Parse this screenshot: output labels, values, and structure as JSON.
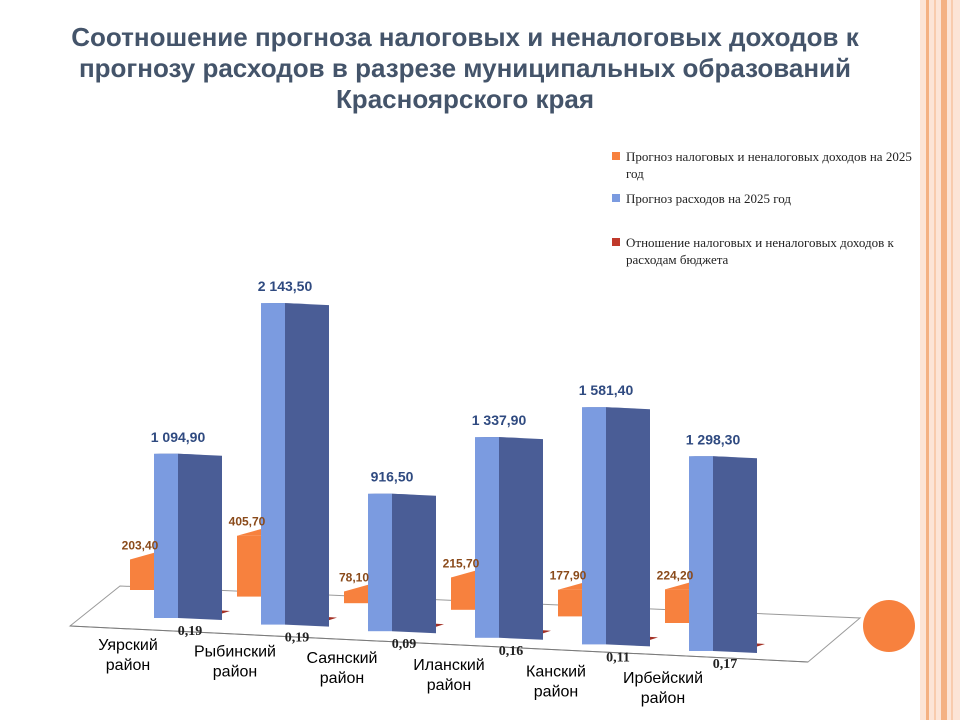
{
  "title": "Соотношение прогноза налоговых и неналоговых доходов к прогнозу расходов в разрезе муниципальных образований Красноярского края",
  "chart_data": {
    "type": "bar",
    "title": "Соотношение прогноза налоговых и неналоговых доходов к прогнозу расходов в разрезе муниципальных образований Красноярского края",
    "categories": [
      {
        "line1": "Уярский",
        "line2": "район"
      },
      {
        "line1": "Рыбинский",
        "line2": "район"
      },
      {
        "line1": "Саянский",
        "line2": "район"
      },
      {
        "line1": "Иланский",
        "line2": "район"
      },
      {
        "line1": "Канский",
        "line2": "район"
      },
      {
        "line1": "Ирбейский",
        "line2": "район"
      }
    ],
    "series": [
      {
        "name": "Прогноз налоговых и неналоговых доходов на 2025 год",
        "color": "#f7813e",
        "values": [
          203.4,
          405.7,
          78.1,
          215.7,
          177.9,
          224.2
        ],
        "labels": [
          "203,40",
          "405,70",
          "78,10",
          "215,70",
          "177,90",
          "224,20"
        ]
      },
      {
        "name": "Прогноз расходов на 2025 год",
        "color": "#7b9be0",
        "values": [
          1094.9,
          2143.5,
          916.5,
          1337.9,
          1581.4,
          1298.3
        ],
        "labels": [
          "1 094,90",
          "2 143,50",
          "916,50",
          "1 337,90",
          "1 581,40",
          "1 298,30"
        ]
      },
      {
        "name": "Отношение налоговых и неналоговых доходов к расходам бюджета",
        "color": "#c0392b",
        "values": [
          0.19,
          0.19,
          0.09,
          0.16,
          0.11,
          0.17
        ],
        "labels": [
          "0,19",
          "0,19",
          "0,09",
          "0,16",
          "0,11",
          "0,17"
        ]
      }
    ],
    "legend_position": "top-right",
    "grid": false
  }
}
